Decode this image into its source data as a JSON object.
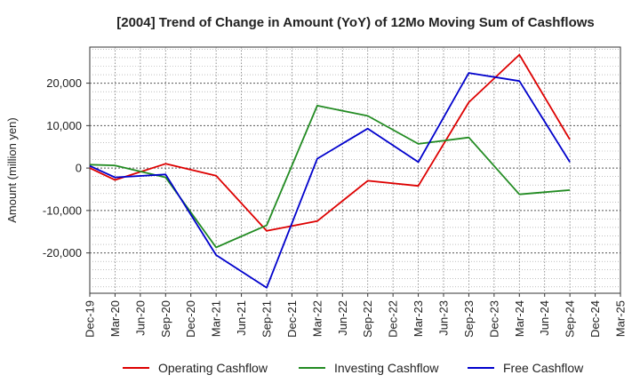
{
  "chart_data": {
    "type": "line",
    "title": "[2004]  Trend of Change in Amount (YoY) of 12Mo Moving Sum of Cashflows",
    "xlabel": "",
    "ylabel": "Amount (million yen)",
    "ylim": [
      -29500,
      28500
    ],
    "yticks": [
      20000,
      10000,
      0,
      -10000,
      -20000
    ],
    "ytick_labels": [
      "20,000",
      "10,000",
      "0",
      "-10,000",
      "-20,000"
    ],
    "categories": [
      "Dec-19",
      "Mar-20",
      "Jun-20",
      "Sep-20",
      "Dec-20",
      "Mar-21",
      "Jun-21",
      "Sep-21",
      "Dec-21",
      "Mar-22",
      "Jun-22",
      "Sep-22",
      "Dec-22",
      "Mar-23",
      "Jun-23",
      "Sep-23",
      "Dec-23",
      "Mar-24",
      "Jun-24",
      "Sep-24",
      "Dec-24",
      "Mar-25"
    ],
    "grid": true,
    "legend_position": "bottom",
    "series": [
      {
        "name": "Operating Cashflow",
        "color": "#dd0000",
        "values": [
          0,
          -2800,
          null,
          1000,
          null,
          -1800,
          null,
          -14800,
          null,
          -12500,
          null,
          -3000,
          null,
          -4200,
          null,
          15500,
          null,
          26700,
          null,
          6700,
          null,
          null
        ]
      },
      {
        "name": "Investing Cashflow",
        "color": "#228b22",
        "values": [
          800,
          600,
          null,
          -2200,
          null,
          -18700,
          null,
          -13500,
          null,
          14700,
          null,
          12300,
          null,
          5700,
          null,
          7200,
          null,
          -6200,
          null,
          -5200,
          null,
          null
        ]
      },
      {
        "name": "Free Cashflow",
        "color": "#0000cc",
        "values": [
          500,
          -2200,
          null,
          -1500,
          null,
          -20500,
          null,
          -28200,
          null,
          2200,
          null,
          9300,
          null,
          1400,
          null,
          22400,
          null,
          20500,
          null,
          1400,
          null,
          null
        ]
      }
    ]
  }
}
